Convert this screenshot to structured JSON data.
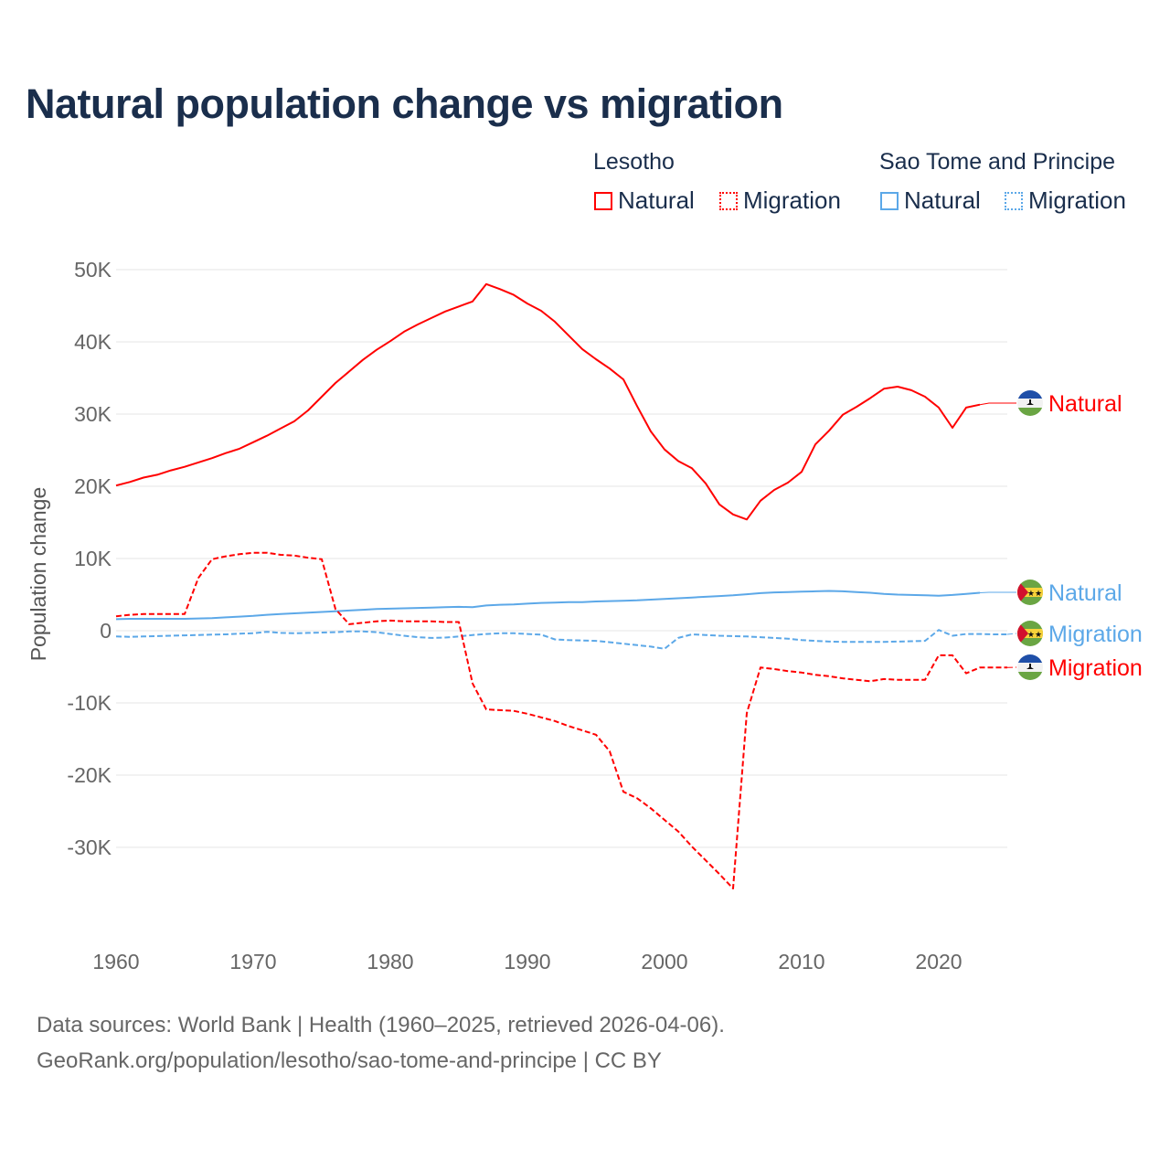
{
  "title": "Natural population change vs migration",
  "legend": {
    "groups": [
      {
        "name": "Lesotho",
        "items": [
          "Natural",
          "Migration"
        ],
        "color": "#ff0000"
      },
      {
        "name": "Sao Tome and Principe",
        "items": [
          "Natural",
          "Migration"
        ],
        "color": "#5ca8e8"
      }
    ]
  },
  "footer": {
    "line1": "Data sources: World Bank | Health (1960–2025, retrieved 2026-04-06).",
    "line2": "GeoRank.org/population/lesotho/sao-tome-and-principe | CC BY"
  },
  "chart_data": {
    "type": "line",
    "title": "Natural population change vs migration",
    "xlabel": "",
    "ylabel": "Population change",
    "xlim": [
      1960,
      2025
    ],
    "ylim": [
      -40000,
      50000
    ],
    "xticks": [
      1960,
      1970,
      1980,
      1990,
      2000,
      2010,
      2020
    ],
    "yticks": [
      50000,
      40000,
      30000,
      20000,
      10000,
      0,
      -10000,
      -20000,
      -30000
    ],
    "ytick_labels": [
      "50K",
      "40K",
      "30K",
      "20K",
      "10K",
      "0",
      "-10K",
      "-20K",
      "-30K"
    ],
    "grid": true,
    "legend_position": "top-right",
    "series": [
      {
        "name": "Lesotho Natural",
        "end_label": "Natural",
        "country": "Lesotho",
        "color": "#ff0000",
        "dash": false,
        "start": 1960,
        "values": [
          20100,
          20600,
          21200,
          21600,
          22200,
          22700,
          23300,
          23900,
          24600,
          25200,
          26100,
          27000,
          28000,
          29000,
          30500,
          32400,
          34300,
          35900,
          37500,
          38900,
          40100,
          41400,
          42400,
          43300,
          44200,
          44900,
          45600,
          48000,
          47300,
          46500,
          45300,
          44300,
          42800,
          40900,
          39000,
          37600,
          36300,
          34800,
          31100,
          27600,
          25100,
          23500,
          22500,
          20400,
          17500,
          16100,
          15400,
          18000,
          19500,
          20500,
          22000,
          25800,
          27700,
          29900,
          31000,
          32200,
          33500,
          33800,
          33300,
          32400,
          30900,
          28100,
          30900,
          31300
        ]
      },
      {
        "name": "Sao Tome and Principe Natural",
        "end_label": "Natural",
        "country": "Sao Tome and Principe",
        "color": "#5ca8e8",
        "dash": false,
        "start": 1960,
        "values": [
          1600,
          1650,
          1650,
          1650,
          1650,
          1650,
          1700,
          1750,
          1850,
          1950,
          2050,
          2200,
          2300,
          2400,
          2500,
          2600,
          2700,
          2800,
          2900,
          3000,
          3050,
          3100,
          3150,
          3200,
          3250,
          3300,
          3250,
          3500,
          3600,
          3650,
          3750,
          3850,
          3900,
          3950,
          3950,
          4050,
          4100,
          4150,
          4200,
          4300,
          4400,
          4500,
          4600,
          4700,
          4800,
          4900,
          5050,
          5200,
          5300,
          5350,
          5400,
          5450,
          5500,
          5450,
          5350,
          5250,
          5100,
          5000,
          4950,
          4900,
          4850,
          4950,
          5100,
          5250
        ]
      },
      {
        "name": "Sao Tome and Principe Migration",
        "end_label": "Migration",
        "country": "Sao Tome and Principe",
        "color": "#5ca8e8",
        "dash": true,
        "start": 1960,
        "values": [
          -800,
          -850,
          -800,
          -750,
          -700,
          -650,
          -600,
          -550,
          -500,
          -400,
          -350,
          -150,
          -300,
          -350,
          -300,
          -250,
          -200,
          -100,
          -100,
          -200,
          -450,
          -700,
          -900,
          -1000,
          -950,
          -800,
          -600,
          -450,
          -350,
          -350,
          -450,
          -550,
          -1200,
          -1300,
          -1350,
          -1400,
          -1600,
          -1800,
          -2000,
          -2200,
          -2500,
          -1000,
          -500,
          -600,
          -700,
          -750,
          -800,
          -900,
          -1000,
          -1100,
          -1300,
          -1400,
          -1500,
          -1550,
          -1550,
          -1550,
          -1550,
          -1500,
          -1450,
          -1400,
          100,
          -700,
          -450,
          -450,
          -500,
          -500
        ]
      },
      {
        "name": "Lesotho Migration",
        "end_label": "Migration",
        "country": "Lesotho",
        "color": "#ff0000",
        "dash": true,
        "start": 1960,
        "values": [
          2000,
          2200,
          2300,
          2300,
          2300,
          2300,
          7300,
          9900,
          10300,
          10600,
          10800,
          10800,
          10500,
          10400,
          10100,
          9900,
          3000,
          900,
          1100,
          1300,
          1400,
          1300,
          1300,
          1300,
          1200,
          1200,
          -7300,
          -10900,
          -11000,
          -11100,
          -11500,
          -12000,
          -12500,
          -13200,
          -13800,
          -14400,
          -16700,
          -22300,
          -23200,
          -24600,
          -26200,
          -27800,
          -29900,
          -31800,
          -33700,
          -35700,
          -11400,
          -5100,
          -5300,
          -5600,
          -5800,
          -6100,
          -6300,
          -6600,
          -6800,
          -7000,
          -6700,
          -6800,
          -6800,
          -6800,
          -3400,
          -3400,
          -5900,
          -5100,
          -5100,
          -5100
        ]
      }
    ]
  }
}
